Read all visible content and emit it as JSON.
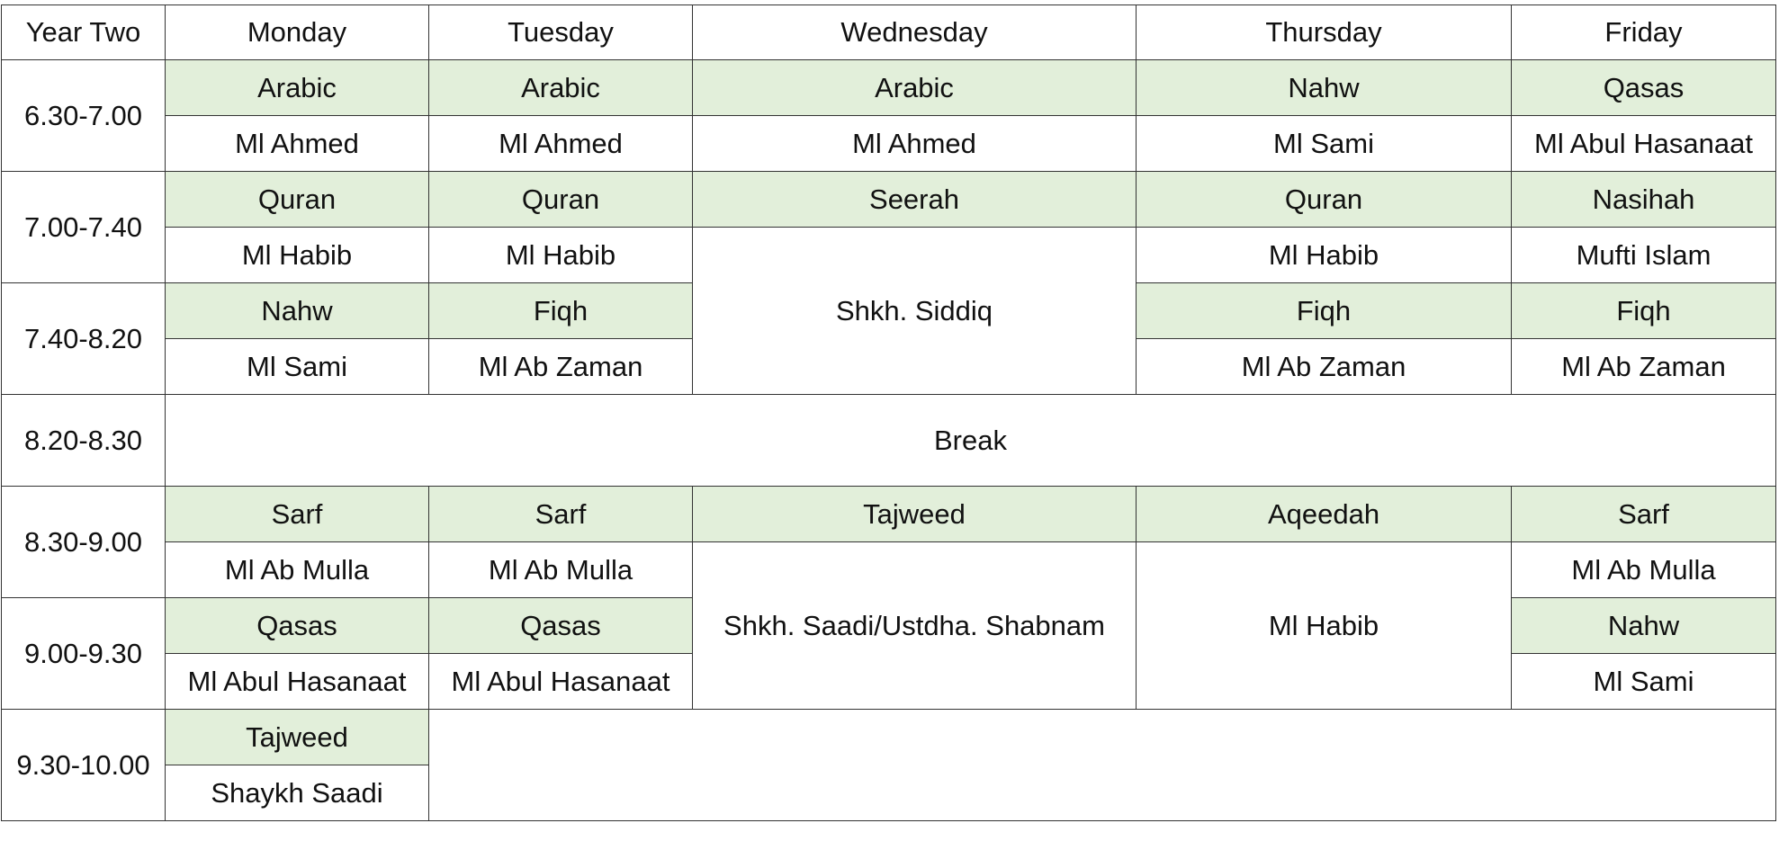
{
  "header": [
    "Year Two",
    "Monday",
    "Tuesday",
    "Wednesday",
    "Thursday",
    "Friday"
  ],
  "colors": {
    "subject_fill": "#E2EFDA",
    "border": "#333333"
  },
  "slots": [
    {
      "time": "6.30-7.00",
      "subjects": [
        "Arabic",
        "Arabic",
        "Arabic",
        "Nahw",
        "Qasas"
      ],
      "teachers": [
        "Ml Ahmed",
        "Ml Ahmed",
        "Ml Ahmed",
        "Ml Sami",
        "Ml Abul Hasanaat"
      ]
    },
    {
      "time": "7.00-7.40",
      "subjects": [
        "Quran",
        "Quran",
        "Seerah",
        "Quran",
        "Nasihah"
      ],
      "teachers": [
        "Ml Habib",
        "Ml Habib",
        "Shkh. Siddiq",
        "Ml Habib",
        "Mufti Islam"
      ]
    },
    {
      "time": "7.40-8.20",
      "subjects": [
        "Nahw",
        "Fiqh",
        "Fiqh",
        "Fiqh"
      ],
      "teachers": [
        "Ml Sami",
        "Ml Ab Zaman",
        "Ml Ab Zaman",
        "Ml Ab Zaman"
      ]
    },
    {
      "time": "8.20-8.30",
      "label": "Break"
    },
    {
      "time": "8.30-9.00",
      "subjects": [
        "Sarf",
        "Sarf",
        "Tajweed",
        "Aqeedah",
        "Sarf"
      ],
      "teachers": [
        "Ml Ab Mulla",
        "Ml Ab Mulla",
        "Shkh. Saadi/Ustdha. Shabnam",
        "Ml Habib",
        "Ml Ab Mulla"
      ]
    },
    {
      "time": "9.00-9.30",
      "subjects": [
        "Qasas",
        "Qasas",
        "Nahw"
      ],
      "teachers": [
        "Ml Abul Hasanaat",
        "Ml Abul Hasanaat",
        "Ml Sami"
      ]
    },
    {
      "time": "9.30-10.00",
      "subjects": [
        "Tajweed"
      ],
      "teachers": [
        "Shaykh Saadi"
      ]
    }
  ]
}
